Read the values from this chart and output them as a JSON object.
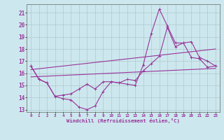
{
  "xlabel": "Windchill (Refroidissement éolien,°C)",
  "bg_color": "#cce8ee",
  "grid_color": "#b0c8cc",
  "line_color": "#993399",
  "xlim": [
    -0.5,
    23.5
  ],
  "ylim": [
    12.8,
    21.7
  ],
  "xticks": [
    0,
    1,
    2,
    3,
    4,
    5,
    6,
    7,
    8,
    9,
    10,
    11,
    12,
    13,
    14,
    15,
    16,
    17,
    18,
    19,
    20,
    21,
    22,
    23
  ],
  "yticks": [
    13,
    14,
    15,
    16,
    17,
    18,
    19,
    20,
    21
  ],
  "line1_x": [
    0,
    1,
    2,
    3,
    4,
    5,
    6,
    7,
    8,
    9,
    10,
    11,
    12,
    13,
    14,
    15,
    16,
    17,
    18,
    19,
    20,
    21,
    22,
    23
  ],
  "line1_y": [
    16.6,
    15.5,
    15.2,
    14.1,
    13.9,
    13.8,
    13.2,
    13.0,
    13.3,
    14.5,
    15.3,
    15.2,
    15.1,
    15.0,
    16.7,
    19.3,
    21.3,
    19.9,
    18.5,
    18.5,
    17.3,
    17.2,
    16.5,
    16.6
  ],
  "line2_x": [
    0,
    1,
    2,
    3,
    4,
    5,
    6,
    7,
    8,
    9,
    10,
    11,
    12,
    13,
    14,
    15,
    16,
    17,
    18,
    19,
    20,
    21,
    22,
    23
  ],
  "line2_y": [
    16.6,
    15.5,
    15.2,
    14.1,
    14.2,
    14.3,
    14.7,
    15.1,
    14.7,
    15.3,
    15.3,
    15.2,
    15.5,
    15.4,
    16.2,
    16.8,
    17.4,
    19.8,
    18.2,
    18.5,
    18.6,
    17.3,
    17.0,
    16.6
  ],
  "line3_x": [
    0,
    23
  ],
  "line3_y": [
    15.7,
    16.4
  ],
  "line4_x": [
    0,
    23
  ],
  "line4_y": [
    16.3,
    18.0
  ]
}
